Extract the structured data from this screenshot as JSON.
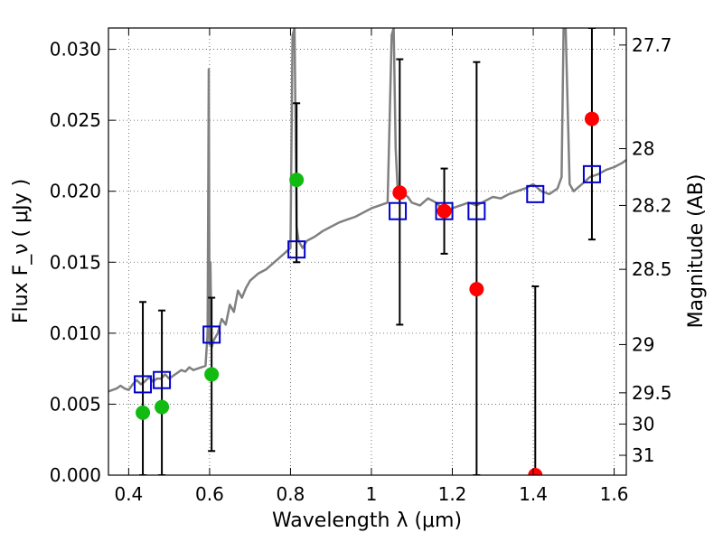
{
  "chart_data": {
    "type": "scatter",
    "title": "",
    "xlabel": "Wavelength  λ (μm)",
    "ylabel": "Flux  F_ν  ( μJy )",
    "ylabel_right": "Magnitude (AB)",
    "xlim": [
      0.35,
      1.63
    ],
    "ylim": [
      0.0,
      0.0315
    ],
    "grid": true,
    "x_ticks": [
      0.4,
      0.6,
      0.8,
      1.0,
      1.2,
      1.4,
      1.6
    ],
    "x_tick_labels": [
      "0.4",
      "0.6",
      "0.8",
      "1",
      "1.2",
      "1.4",
      "1.6"
    ],
    "y_ticks": [
      0.0,
      0.005,
      0.01,
      0.015,
      0.02,
      0.025,
      0.03
    ],
    "y_tick_labels": [
      "0.000",
      "0.005",
      "0.010",
      "0.015",
      "0.020",
      "0.025",
      "0.030"
    ],
    "right_ticks": [
      {
        "label": "27.7",
        "flux": 0.0303
      },
      {
        "label": "28",
        "flux": 0.023
      },
      {
        "label": "28.2",
        "flux": 0.019
      },
      {
        "label": "28.5",
        "flux": 0.0145
      },
      {
        "label": "29",
        "flux": 0.0092
      },
      {
        "label": "29.5",
        "flux": 0.0058
      },
      {
        "label": "30",
        "flux": 0.0036
      },
      {
        "label": "31",
        "flux": 0.0014
      }
    ],
    "colors": {
      "spectrum": "#808080",
      "green": "#11bb11",
      "red": "#ff0000",
      "model_box": "#0000cc",
      "errorbar": "#000000",
      "grid": "#555555"
    },
    "series": [
      {
        "name": "Model spectrum",
        "kind": "line",
        "x": [
          0.35,
          0.36,
          0.37,
          0.38,
          0.39,
          0.4,
          0.41,
          0.42,
          0.43,
          0.44,
          0.45,
          0.46,
          0.47,
          0.48,
          0.49,
          0.5,
          0.51,
          0.52,
          0.53,
          0.54,
          0.55,
          0.56,
          0.57,
          0.58,
          0.59,
          0.595,
          0.598,
          0.6,
          0.602,
          0.605,
          0.61,
          0.62,
          0.63,
          0.64,
          0.65,
          0.66,
          0.67,
          0.68,
          0.69,
          0.7,
          0.72,
          0.74,
          0.76,
          0.78,
          0.8,
          0.805,
          0.81,
          0.815,
          0.82,
          0.83,
          0.84,
          0.86,
          0.88,
          0.9,
          0.92,
          0.94,
          0.96,
          0.98,
          1.0,
          1.02,
          1.04,
          1.05,
          1.055,
          1.06,
          1.065,
          1.07,
          1.08,
          1.09,
          1.1,
          1.12,
          1.14,
          1.16,
          1.18,
          1.2,
          1.22,
          1.24,
          1.26,
          1.28,
          1.3,
          1.32,
          1.34,
          1.36,
          1.38,
          1.4,
          1.42,
          1.44,
          1.46,
          1.47,
          1.475,
          1.48,
          1.49,
          1.5,
          1.52,
          1.54,
          1.56,
          1.58,
          1.6,
          1.62,
          1.63
        ],
        "y": [
          0.0059,
          0.006,
          0.0061,
          0.0063,
          0.0061,
          0.006,
          0.0064,
          0.0067,
          0.0064,
          0.0066,
          0.0069,
          0.0066,
          0.0068,
          0.0068,
          0.0071,
          0.0068,
          0.007,
          0.0072,
          0.0074,
          0.0073,
          0.0076,
          0.0074,
          0.0075,
          0.0076,
          0.0077,
          0.01,
          0.0286,
          0.0092,
          0.015,
          0.009,
          0.0095,
          0.01,
          0.011,
          0.0106,
          0.012,
          0.0115,
          0.013,
          0.0125,
          0.0132,
          0.0137,
          0.0142,
          0.0145,
          0.015,
          0.0155,
          0.016,
          0.031,
          0.0315,
          0.0175,
          0.0165,
          0.016,
          0.0165,
          0.0168,
          0.0172,
          0.0175,
          0.0178,
          0.018,
          0.0182,
          0.0185,
          0.0188,
          0.019,
          0.0192,
          0.031,
          0.0315,
          0.023,
          0.02,
          0.0195,
          0.0198,
          0.0196,
          0.0192,
          0.019,
          0.0195,
          0.0192,
          0.0186,
          0.0188,
          0.019,
          0.0192,
          0.019,
          0.0193,
          0.0196,
          0.0195,
          0.0198,
          0.02,
          0.0202,
          0.0205,
          0.02,
          0.0198,
          0.0202,
          0.021,
          0.0315,
          0.0315,
          0.0205,
          0.02,
          0.0205,
          0.021,
          0.0212,
          0.0215,
          0.0217,
          0.022,
          0.0222
        ]
      },
      {
        "name": "Green detections",
        "kind": "points",
        "x": [
          0.435,
          0.482,
          0.605,
          0.815
        ],
        "y": [
          0.0044,
          0.0048,
          0.0071,
          0.0208
        ]
      },
      {
        "name": "Red detections",
        "kind": "points",
        "x": [
          1.07,
          1.18,
          1.26,
          1.405,
          1.545
        ],
        "y": [
          0.0199,
          0.0186,
          0.0131,
          0.0,
          0.0251
        ]
      },
      {
        "name": "Model bandpass flux",
        "kind": "boxes",
        "x": [
          0.435,
          0.482,
          0.605,
          0.815,
          1.065,
          1.18,
          1.26,
          1.405,
          1.545
        ],
        "y": [
          0.0064,
          0.0067,
          0.0099,
          0.0159,
          0.0186,
          0.0186,
          0.0186,
          0.0198,
          0.0212
        ]
      }
    ],
    "error_bars": [
      {
        "x": 0.435,
        "low": 0.0,
        "high": 0.0122
      },
      {
        "x": 0.482,
        "low": 0.0,
        "high": 0.0116
      },
      {
        "x": 0.605,
        "low": 0.0017,
        "high": 0.0125
      },
      {
        "x": 0.815,
        "low": 0.015,
        "high": 0.0262
      },
      {
        "x": 1.07,
        "low": 0.0106,
        "high": 0.0293
      },
      {
        "x": 1.18,
        "low": 0.0156,
        "high": 0.0216
      },
      {
        "x": 1.26,
        "low": 0.0,
        "high": 0.0291
      },
      {
        "x": 1.405,
        "low": 0.0,
        "high": 0.0133
      },
      {
        "x": 1.545,
        "low": 0.0166,
        "high": 0.0315
      }
    ]
  }
}
